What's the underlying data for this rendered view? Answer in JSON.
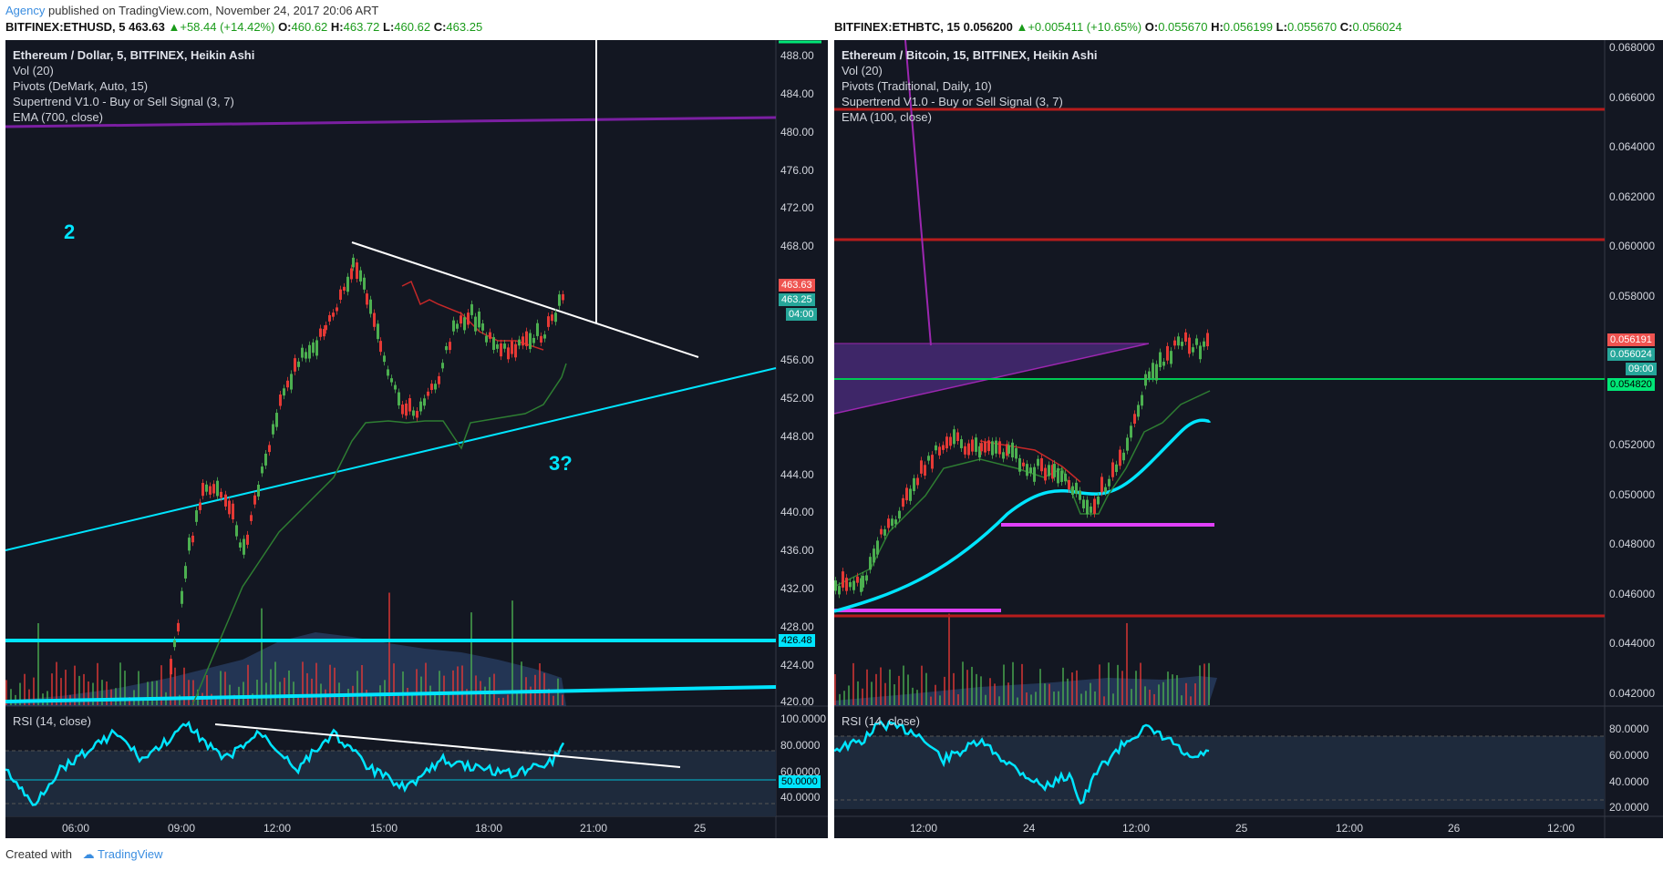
{
  "header": {
    "agency": "Agency",
    "published": "published on TradingView.com, November 24, 2017 20:06 ART"
  },
  "left": {
    "symbol": "BITFINEX:ETHUSD, 5",
    "last": "463.63",
    "change": "+58.44 (+14.42%)",
    "o_label": "O:",
    "o": "460.62",
    "h_label": "H:",
    "h": "463.72",
    "l_label": "L:",
    "l": "460.62",
    "c_label": "C:",
    "c": "463.25",
    "legend": [
      "Ethereum / Dollar, 5, BITFINEX, Heikin Ashi",
      "Vol (20)",
      "Pivots (DeMark, Auto, 15)",
      "Supertrend V1.0 - Buy or Sell Signal (3, 7)",
      "EMA (700, close)"
    ],
    "price_axis": [
      "488.00",
      "484.00",
      "480.00",
      "476.00",
      "472.00",
      "468.00",
      "463.63",
      "463.25",
      "04:00",
      "456.00",
      "452.00",
      "448.00",
      "444.00",
      "440.00",
      "436.00",
      "432.00",
      "428.00",
      "426.48",
      "424.00",
      "420.00"
    ],
    "annotation_2": "2",
    "annotation_3": "3?",
    "rsi_label": "RSI (14, close)",
    "rsi_axis": [
      "100.0000",
      "80.0000",
      "60.0000",
      "50.0000",
      "40.0000"
    ],
    "time_axis": [
      "06:00",
      "09:00",
      "12:00",
      "15:00",
      "18:00",
      "21:00",
      "25"
    ]
  },
  "right": {
    "symbol": "BITFINEX:ETHBTC, 15",
    "last": "0.056200",
    "change": "+0.005411 (+10.65%)",
    "o_label": "O:",
    "o": "0.055670",
    "h_label": "H:",
    "h": "0.056199",
    "l_label": "L:",
    "l": "0.055670",
    "c_label": "C:",
    "c": "0.056024",
    "legend": [
      "Ethereum / Bitcoin, 15, BITFINEX, Heikin Ashi",
      "Vol (20)",
      "Pivots (Traditional, Daily, 10)",
      "Supertrend V1.0 - Buy or Sell Signal (3, 7)",
      "EMA (100, close)"
    ],
    "price_axis": [
      "0.068000",
      "0.066000",
      "0.064000",
      "0.062000",
      "0.060000",
      "0.058000",
      "0.056191",
      "0.056024",
      "09:00",
      "0.054820",
      "0.052000",
      "0.050000",
      "0.048000",
      "0.046000",
      "0.044000",
      "0.042000"
    ],
    "rsi_label": "RSI (14, close)",
    "rsi_axis": [
      "80.0000",
      "60.0000",
      "40.0000",
      "20.0000"
    ],
    "time_axis": [
      "12:00",
      "24",
      "12:00",
      "25",
      "12:00",
      "26",
      "12:00"
    ]
  },
  "footer": {
    "created": "Created with",
    "brand": "TradingView"
  },
  "colors": {
    "bg": "#131722",
    "up": "#26a69a",
    "cyan": "#00e5ff",
    "purple": "#9c27b0",
    "magenta": "#e040fb",
    "darkred": "#b71c1c"
  }
}
